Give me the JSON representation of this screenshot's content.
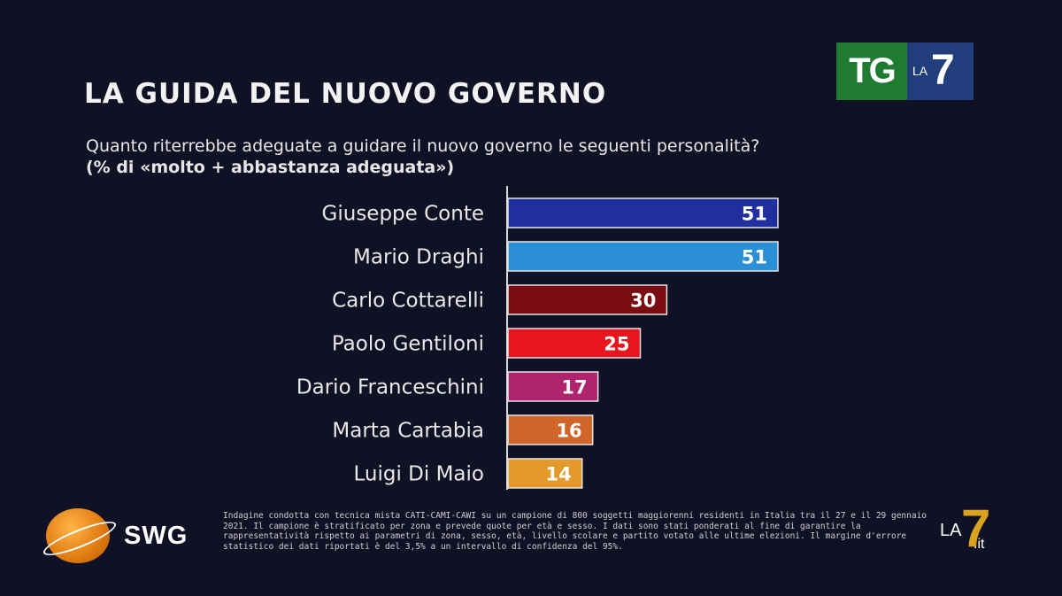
{
  "header": {
    "title": "LA GUIDA DEL NUOVO GOVERNO",
    "question": "Quanto riterrebbe adeguate a guidare il nuovo governo le seguenti personalità?",
    "note": "(% di «molto + abbastanza adeguata»)"
  },
  "broadcaster": {
    "tg": "TG",
    "la": "LA",
    "seven": "7"
  },
  "chart_data": {
    "type": "bar",
    "orientation": "horizontal",
    "categories": [
      "Giuseppe Conte",
      "Mario Draghi",
      "Carlo Cottarelli",
      "Paolo Gentiloni",
      "Dario Franceschini",
      "Marta Cartabia",
      "Luigi Di Maio"
    ],
    "values": [
      51,
      51,
      30,
      25,
      17,
      16,
      14
    ],
    "colors": [
      "#1f2f9e",
      "#2b8fd6",
      "#7a0d12",
      "#e8161c",
      "#b0246e",
      "#cf6528",
      "#e49a2a"
    ],
    "title": "LA GUIDA DEL NUOVO GOVERNO",
    "xlim": [
      0,
      60
    ],
    "grid": false,
    "legend": "none"
  },
  "footer": {
    "brand": "SWG",
    "text": "Indagine condotta con tecnica mista CATI-CAMI-CAWI su un campione di 800 soggetti maggiorenni residenti in Italia tra il 27 e il 29 gennaio 2021. Il campione è stratificato per zona e prevede quote per età e sesso. I dati sono stati ponderati al fine di garantire la rappresentatività rispetto ai parametri di zona, sesso, età, livello scolare e partito votato alle ultime elezioni. Il margine d'errore statistico dei dati riportati è del 3,5% a un intervallo di confidenza del 95%.",
    "site_la": "LA",
    "site_seven": "7",
    "site_it": ".it"
  }
}
